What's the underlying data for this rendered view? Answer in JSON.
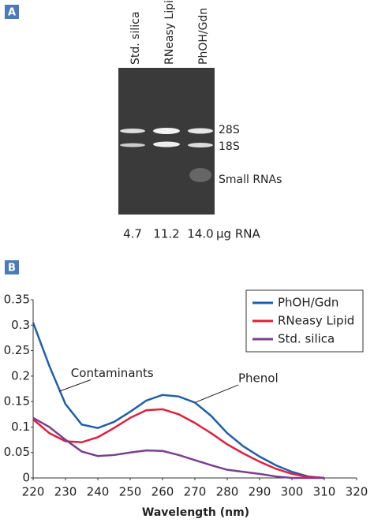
{
  "panel_a": {
    "label": "A",
    "lanes": [
      "Std. silica",
      "RNeasy Lipid",
      "PhOH/Gdn"
    ],
    "bands": [
      "28S",
      "18S",
      "Small RNAs"
    ],
    "yields": [
      "4.7",
      "11.2",
      "14.0"
    ],
    "yield_unit": "µg RNA"
  },
  "chart_data": {
    "type": "line",
    "panel_label": "B",
    "xlabel": "Wavelength (nm)",
    "x": [
      220,
      225,
      230,
      235,
      240,
      245,
      250,
      255,
      260,
      265,
      270,
      275,
      280,
      285,
      290,
      295,
      300,
      305,
      310
    ],
    "series": [
      {
        "name": "PhOH/Gdn",
        "color": "#1f5fa8",
        "values": [
          0.305,
          0.22,
          0.145,
          0.105,
          0.098,
          0.11,
          0.13,
          0.152,
          0.163,
          0.16,
          0.148,
          0.122,
          0.088,
          0.062,
          0.042,
          0.025,
          0.012,
          0.003,
          0
        ]
      },
      {
        "name": "RNeasy Lipid",
        "color": "#e0203c",
        "values": [
          0.115,
          0.088,
          0.072,
          0.07,
          0.08,
          0.098,
          0.118,
          0.133,
          0.135,
          0.125,
          0.108,
          0.088,
          0.066,
          0.048,
          0.032,
          0.018,
          0.008,
          0.002,
          0
        ]
      },
      {
        "name": "Std. silica",
        "color": "#7b3f8f",
        "values": [
          0.118,
          0.1,
          0.075,
          0.052,
          0.043,
          0.045,
          0.05,
          0.054,
          0.053,
          0.045,
          0.035,
          0.025,
          0.016,
          0.012,
          0.008,
          0.003,
          0,
          0,
          0
        ]
      }
    ],
    "xlim": [
      220,
      320
    ],
    "xticks": [
      220,
      230,
      240,
      250,
      260,
      270,
      280,
      290,
      300,
      310,
      320
    ],
    "ylim": [
      0,
      0.35
    ],
    "yticks": [
      0,
      0.05,
      0.1,
      0.15,
      0.2,
      0.25,
      0.3,
      0.35
    ],
    "legend": "upper right",
    "annotations": [
      {
        "text": "Contaminants",
        "x": 228,
        "y": 0.17
      },
      {
        "text": "Phenol",
        "x": 270,
        "y": 0.148
      }
    ]
  }
}
